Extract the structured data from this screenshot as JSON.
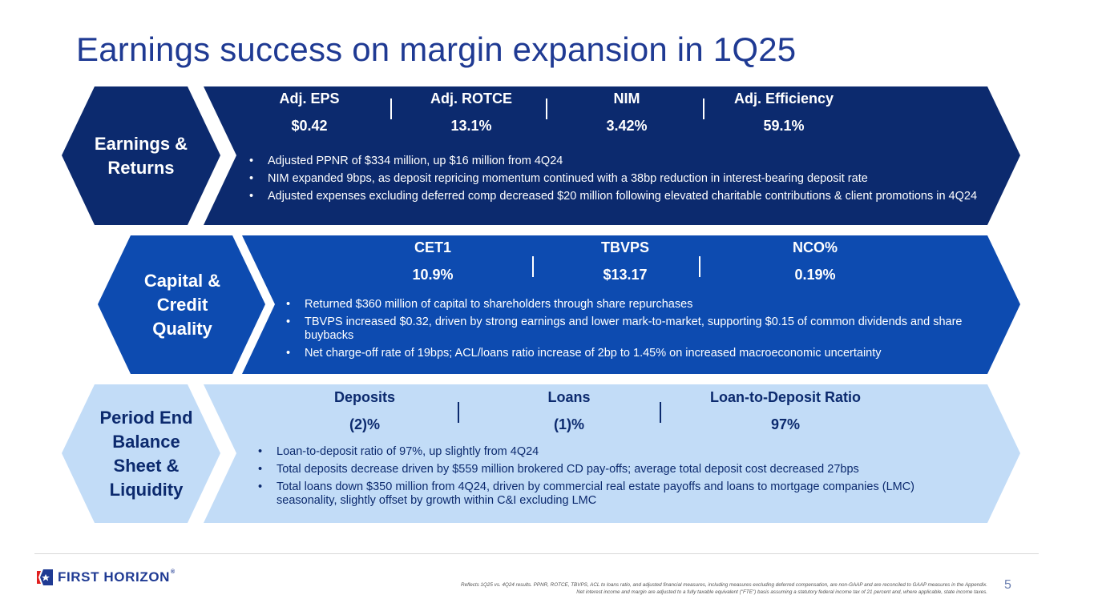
{
  "title": "Earnings success on margin expansion in 1Q25",
  "colors": {
    "dark_navy": "#0c2a6e",
    "royal_blue": "#0d4bb0",
    "light_blue": "#c2dcf7",
    "title_blue": "#1f3a93"
  },
  "sections": [
    {
      "label": "Earnings & Returns",
      "label_lines": [
        "Earnings &",
        "Returns"
      ],
      "metrics": [
        {
          "label": "Adj. EPS",
          "value": "$0.42"
        },
        {
          "label": "Adj. ROTCE",
          "value": "13.1%"
        },
        {
          "label": "NIM",
          "value": "3.42%"
        },
        {
          "label": "Adj. Efficiency",
          "value": "59.1%"
        }
      ],
      "bullets": [
        "Adjusted PPNR of $334 million, up $16 million from 4Q24",
        "NIM expanded 9bps, as deposit repricing momentum continued with a 38bp reduction in interest-bearing deposit rate",
        "Adjusted expenses excluding deferred comp decreased $20 million following elevated charitable contributions & client promotions in 4Q24"
      ]
    },
    {
      "label": "Capital & Credit Quality",
      "label_lines": [
        "Capital &",
        "Credit",
        "Quality"
      ],
      "metrics": [
        {
          "label": "CET1",
          "value": "10.9%"
        },
        {
          "label": "TBVPS",
          "value": "$13.17"
        },
        {
          "label": "NCO%",
          "value": "0.19%"
        }
      ],
      "bullets": [
        "Returned $360 million of capital to shareholders through share repurchases",
        "TBVPS increased $0.32, driven by strong earnings and lower mark-to-market, supporting $0.15 of common dividends and share buybacks",
        "Net charge-off rate of 19bps; ACL/loans ratio increase of 2bp to 1.45% on increased macroeconomic uncertainty"
      ]
    },
    {
      "label": "Period End Balance Sheet & Liquidity",
      "label_lines": [
        "Period End",
        "Balance",
        "Sheet &",
        "Liquidity"
      ],
      "metrics": [
        {
          "label": "Deposits",
          "value": "(2)%"
        },
        {
          "label": "Loans",
          "value": "(1)%"
        },
        {
          "label": "Loan-to-Deposit Ratio",
          "value": "97%"
        }
      ],
      "bullets": [
        "Loan-to-deposit ratio of 97%, up slightly from 4Q24",
        "Total deposits decrease driven by $559 million brokered CD pay-offs; average total deposit cost decreased 27bps",
        "Total loans down $350 million from 4Q24, driven by commercial real estate payoffs and loans to mortgage companies (LMC) seasonality, slightly offset by growth within C&I excluding LMC"
      ]
    }
  ],
  "footer": {
    "logo_text": "FIRST HORIZON",
    "logo_mark": "®",
    "note_line1": "Reflects 1Q25 vs. 4Q24 results. PPNR, ROTCE, TBVPS, ACL to loans ratio, and adjusted financial measures, including measures excluding deferred compensation, are non-GAAP and are reconciled to GAAP measures in the Appendix.",
    "note_line2": "Net interest income and margin are adjusted to a fully taxable equivalent (\"FTE\") basis assuming a statutory federal income tax of 21 percent and, where applicable, state income taxes.",
    "page_number": "5"
  }
}
